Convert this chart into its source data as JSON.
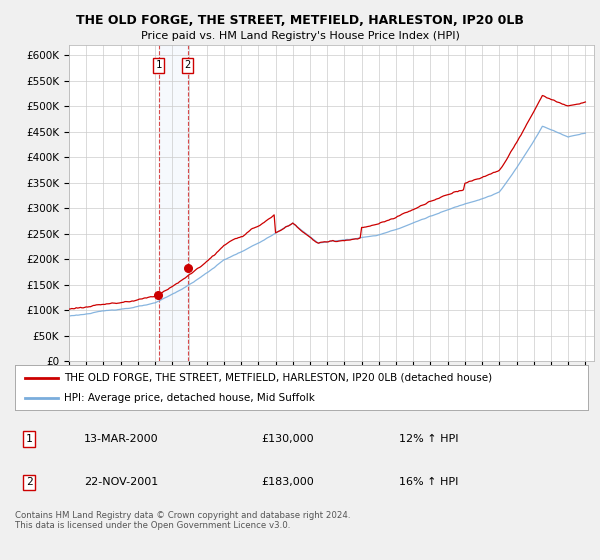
{
  "title": "THE OLD FORGE, THE STREET, METFIELD, HARLESTON, IP20 0LB",
  "subtitle": "Price paid vs. HM Land Registry's House Price Index (HPI)",
  "legend_line1": "THE OLD FORGE, THE STREET, METFIELD, HARLESTON, IP20 0LB (detached house)",
  "legend_line2": "HPI: Average price, detached house, Mid Suffolk",
  "transaction1_date": "13-MAR-2000",
  "transaction1_price": "£130,000",
  "transaction1_hpi": "12% ↑ HPI",
  "transaction1_year": 2000.2,
  "transaction1_value": 130000,
  "transaction2_date": "22-NOV-2001",
  "transaction2_price": "£183,000",
  "transaction2_hpi": "16% ↑ HPI",
  "transaction2_year": 2001.9,
  "transaction2_value": 183000,
  "footer": "Contains HM Land Registry data © Crown copyright and database right 2024.\nThis data is licensed under the Open Government Licence v3.0.",
  "red_color": "#cc0000",
  "blue_color": "#7aaddc",
  "bg_color": "#f0f0f0",
  "plot_bg": "#ffffff",
  "grid_color": "#cccccc",
  "ylim_max": 620000,
  "xlim": [
    1995,
    2025.5
  ]
}
